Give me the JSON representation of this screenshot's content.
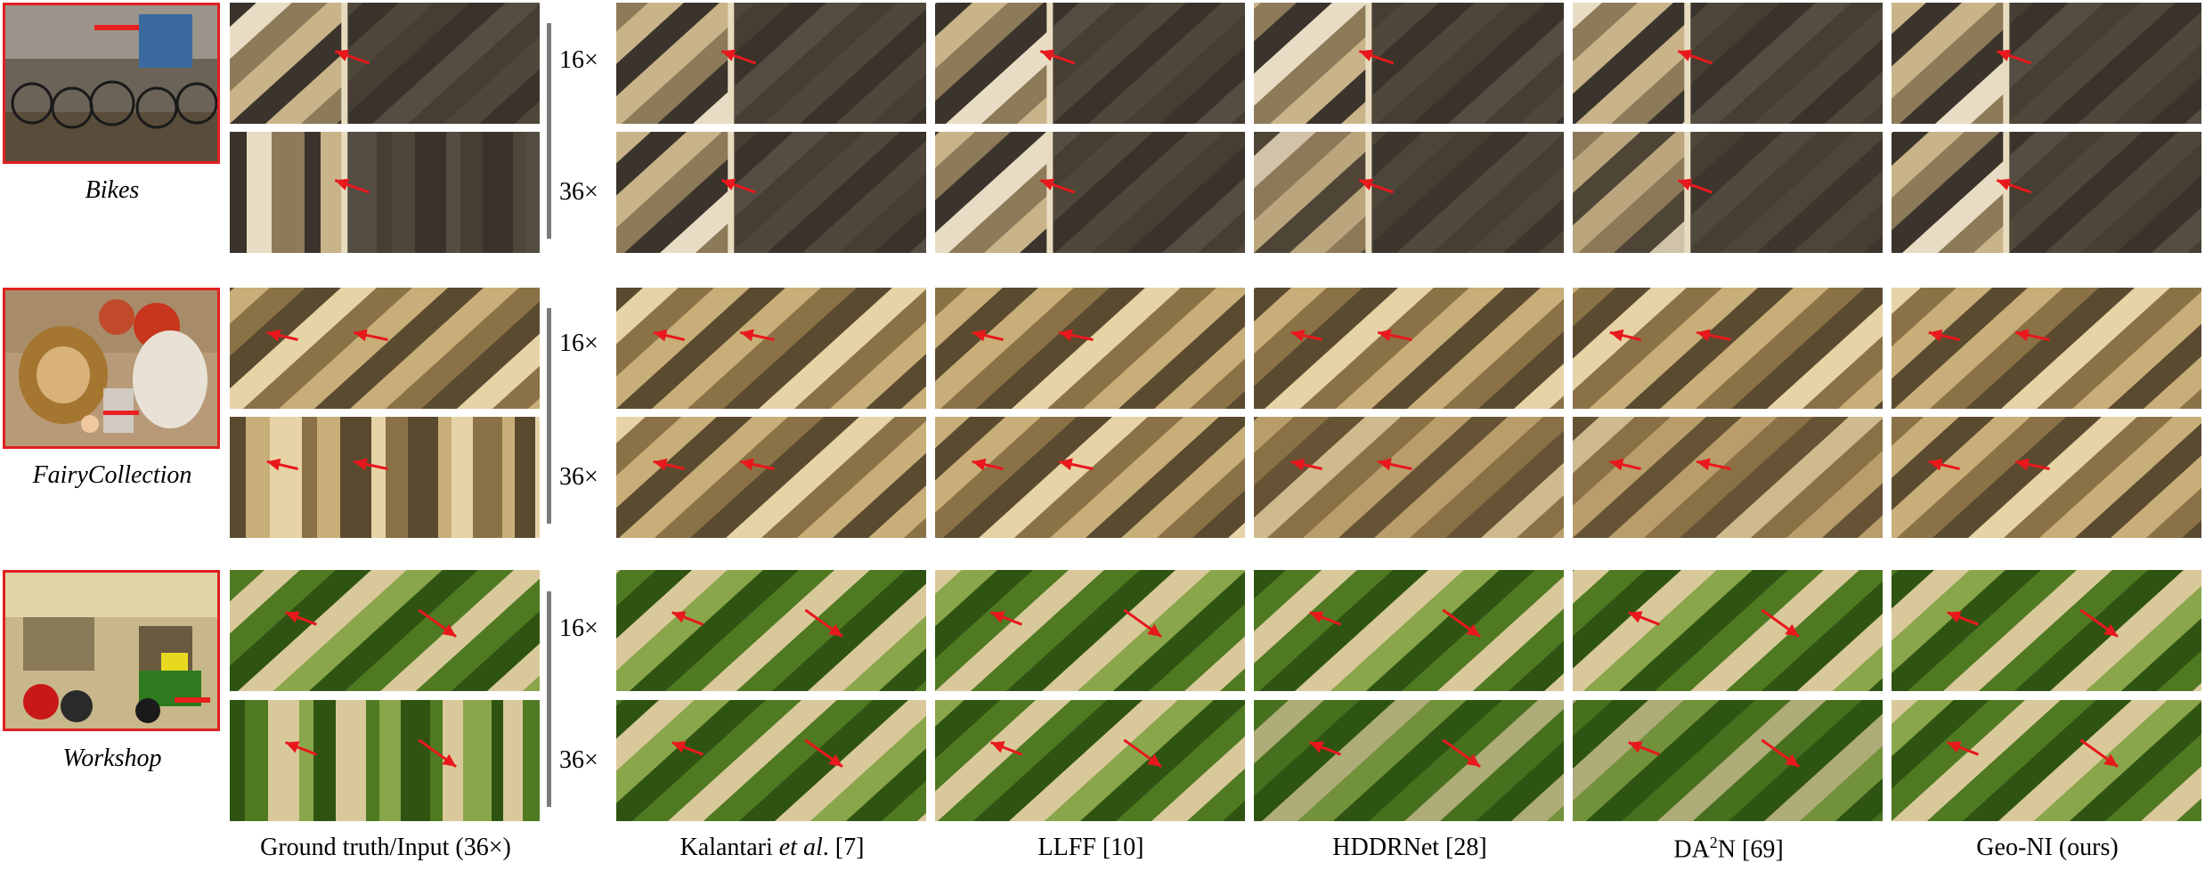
{
  "scenes": [
    {
      "name": "Bikes",
      "palette": {
        "a": "#c9b48a",
        "b": "#8d7a58",
        "c": "#3a342c",
        "d": "#e8dcc4"
      }
    },
    {
      "name": "FairyCollection",
      "palette": {
        "a": "#c8ae78",
        "b": "#8a7246",
        "c": "#5a4a30",
        "d": "#e6d3a6"
      }
    },
    {
      "name": "Workshop",
      "palette": {
        "a": "#4f7a22",
        "b": "#2f5412",
        "c": "#d9c99a",
        "d": "#8aa64a"
      }
    }
  ],
  "factors": [
    "16×",
    "36×"
  ],
  "columns": [
    {
      "label_main": "Ground truth/Input (36×)",
      "label_italic": "",
      "label_tail": ""
    },
    {
      "label_main": "Kalantari ",
      "label_italic": "et al",
      "label_tail": ". [7]"
    },
    {
      "label_main": "LLFF [10]",
      "label_italic": "",
      "label_tail": ""
    },
    {
      "label_main": "HDDRNet [28]",
      "label_italic": "",
      "label_tail": ""
    },
    {
      "label_main": "DA",
      "label_sup": "2",
      "label_tail": "N [69]"
    },
    {
      "label_main": "Geo-NI (ours)",
      "label_italic": "",
      "label_tail": ""
    }
  ],
  "colors": {
    "arrow": "#e8181c",
    "thumb_border": "#e02020",
    "bar": "#7a7a7a"
  }
}
